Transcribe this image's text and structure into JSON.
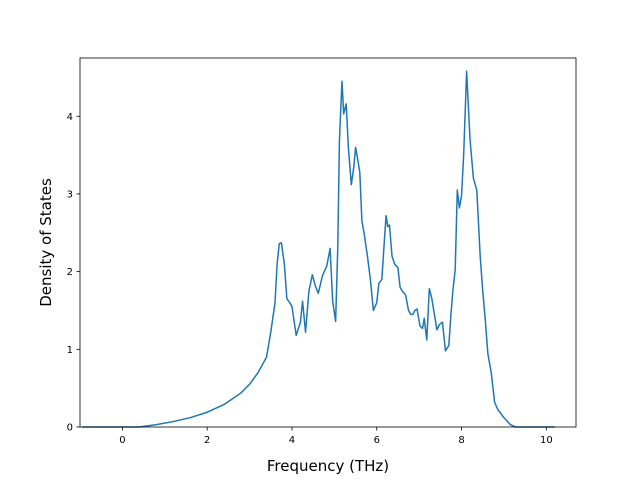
{
  "chart_data": {
    "type": "line",
    "xlabel": "Frequency (THz)",
    "ylabel": "Density of States",
    "xlim": [
      -1.0,
      10.7
    ],
    "ylim": [
      0,
      4.75
    ],
    "xticks": [
      0,
      2,
      4,
      6,
      8,
      10
    ],
    "yticks": [
      0,
      1,
      2,
      3,
      4
    ],
    "grid": false,
    "series": [
      {
        "color": "#1f77b4",
        "x": [
          -0.95,
          0.4,
          0.8,
          1.2,
          1.6,
          2.0,
          2.4,
          2.8,
          3.0,
          3.2,
          3.4,
          3.5,
          3.6,
          3.65,
          3.7,
          3.75,
          3.82,
          3.88,
          3.95,
          4.0,
          4.1,
          4.2,
          4.25,
          4.32,
          4.4,
          4.48,
          4.55,
          4.62,
          4.72,
          4.82,
          4.9,
          4.96,
          5.03,
          5.08,
          5.12,
          5.18,
          5.22,
          5.28,
          5.33,
          5.4,
          5.46,
          5.5,
          5.55,
          5.6,
          5.65,
          5.7,
          5.78,
          5.85,
          5.92,
          6.0,
          6.05,
          6.12,
          6.18,
          6.22,
          6.26,
          6.3,
          6.36,
          6.42,
          6.5,
          6.55,
          6.6,
          6.68,
          6.75,
          6.8,
          6.85,
          6.9,
          6.95,
          7.02,
          7.08,
          7.12,
          7.18,
          7.24,
          7.3,
          7.36,
          7.42,
          7.48,
          7.55,
          7.62,
          7.7,
          7.75,
          7.8,
          7.85,
          7.9,
          7.95,
          8.0,
          8.05,
          8.12,
          8.2,
          8.28,
          8.36,
          8.44,
          8.5,
          8.56,
          8.62,
          8.7,
          8.78,
          8.85,
          9.0,
          9.15,
          9.28,
          10.2
        ],
        "y": [
          0.0,
          0.0,
          0.03,
          0.07,
          0.12,
          0.19,
          0.29,
          0.44,
          0.55,
          0.7,
          0.9,
          1.22,
          1.6,
          2.1,
          2.36,
          2.37,
          2.1,
          1.65,
          1.6,
          1.55,
          1.18,
          1.35,
          1.62,
          1.22,
          1.75,
          1.96,
          1.82,
          1.72,
          1.95,
          2.07,
          2.3,
          1.62,
          1.36,
          2.3,
          3.7,
          4.45,
          4.03,
          4.16,
          3.6,
          3.12,
          3.35,
          3.6,
          3.45,
          3.28,
          2.65,
          2.5,
          2.2,
          1.9,
          1.5,
          1.6,
          1.85,
          1.9,
          2.4,
          2.72,
          2.58,
          2.6,
          2.2,
          2.1,
          2.05,
          1.8,
          1.75,
          1.7,
          1.5,
          1.45,
          1.45,
          1.5,
          1.52,
          1.3,
          1.27,
          1.4,
          1.12,
          1.78,
          1.65,
          1.45,
          1.25,
          1.32,
          1.35,
          0.98,
          1.05,
          1.45,
          1.78,
          2.02,
          3.05,
          2.82,
          2.98,
          3.5,
          4.58,
          3.7,
          3.2,
          3.05,
          2.2,
          1.75,
          1.38,
          0.95,
          0.7,
          0.32,
          0.23,
          0.12,
          0.03,
          0.0,
          0.0
        ]
      }
    ]
  }
}
